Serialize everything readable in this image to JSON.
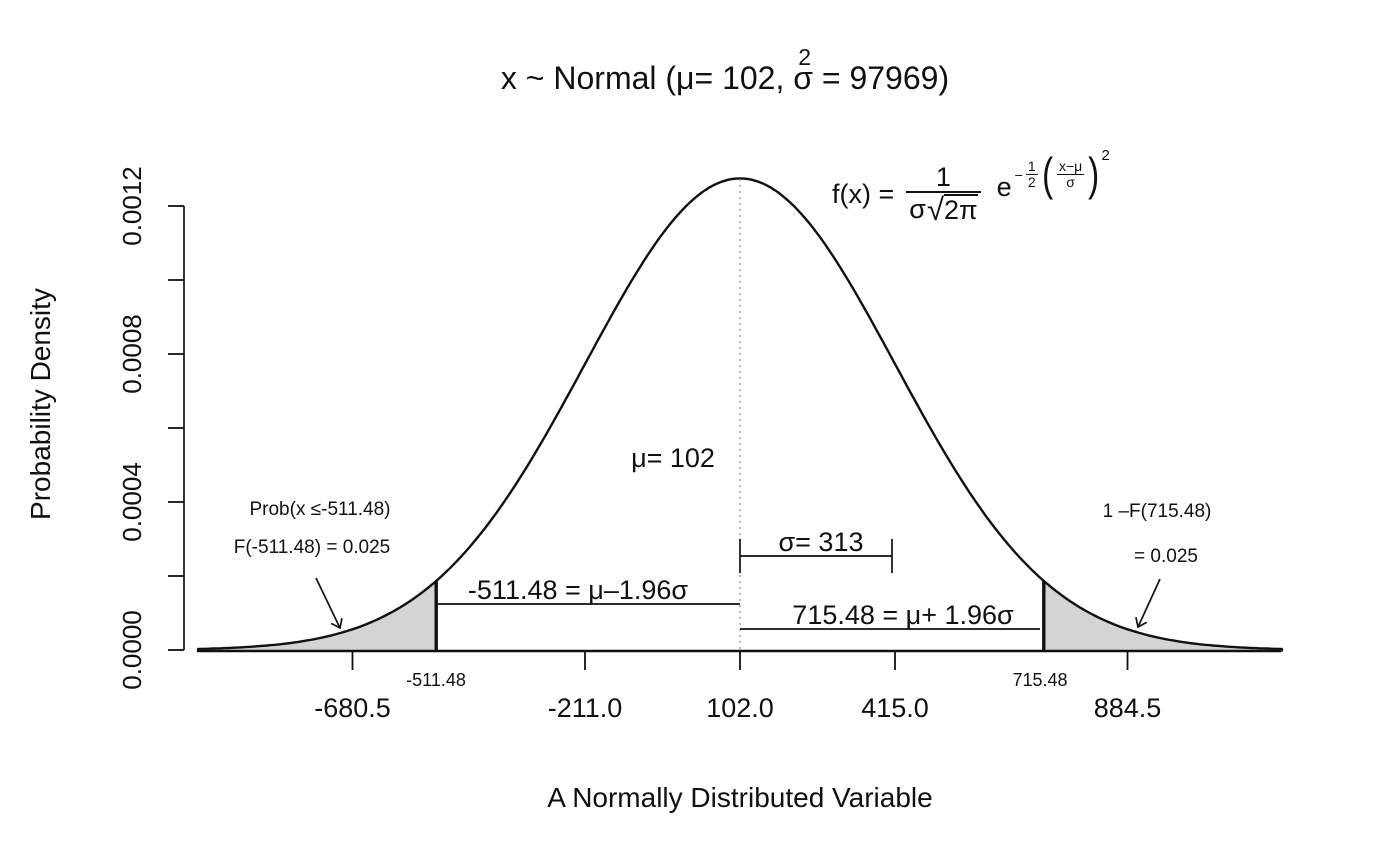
{
  "title": {
    "prefix": "x ~ Normal (μ= 102, ",
    "sigma": "σ",
    "sup": "2",
    "suffix": " = 97969)",
    "full": "x ~ Normal (μ= 102, σ² = 97969)"
  },
  "formula": {
    "lhs": "f(x) =",
    "num": "1",
    "den_sigma": "σ",
    "sqrt_sign": "√",
    "radicand": "2π",
    "e": "e",
    "exp_minus": "−",
    "exp_frac_num": "1",
    "exp_frac_den": "2",
    "paren_open": "(",
    "inner_num": "x−μ",
    "inner_den": "σ",
    "paren_close": ")",
    "exp_power": "2"
  },
  "annotations": {
    "left_tail_line1": "Prob(x ≤-511.48)",
    "left_tail_line2": "F(-511.48) = 0.025",
    "right_tail_line1": "1 –F(715.48)",
    "right_tail_line2": "= 0.025",
    "mu_label": "μ= 102",
    "sigma_label": "σ= 313",
    "lower_eq": "-511.48 = μ–1.96σ",
    "upper_eq": "715.48 = μ+ 1.96σ",
    "lower_crit_tick": "-511.48",
    "upper_crit_tick": "715.48"
  },
  "chart_data": {
    "type": "line",
    "title": "x ~ Normal (μ= 102, σ² = 97969)",
    "xlabel": "A Normally Distributed Variable",
    "ylabel": "Probability Density",
    "distribution": {
      "family": "normal",
      "mean": 102,
      "sd": 313,
      "variance": 97969
    },
    "x_range": [
      -993.5,
      1197.5
    ],
    "ylim": [
      0,
      0.0012
    ],
    "peak_density": 0.001274,
    "x_ticks": [
      {
        "value": -680.5,
        "label": "-680.5"
      },
      {
        "value": -211.0,
        "label": "-211.0"
      },
      {
        "value": 102.0,
        "label": "102.0"
      },
      {
        "value": 415.0,
        "label": "415.0"
      },
      {
        "value": 884.5,
        "label": "884.5"
      }
    ],
    "y_ticks": [
      {
        "value": 0.0,
        "label": "0.0000"
      },
      {
        "value": 0.0002,
        "label": ""
      },
      {
        "value": 0.0004,
        "label": "0.0004"
      },
      {
        "value": 0.0006,
        "label": ""
      },
      {
        "value": 0.0008,
        "label": "0.0008"
      },
      {
        "value": 0.001,
        "label": ""
      },
      {
        "value": 0.0012,
        "label": "0.0012"
      }
    ],
    "critical_values": {
      "lower": -511.48,
      "upper": 715.48,
      "z": 1.96
    },
    "shaded_regions": [
      {
        "from": -993.5,
        "to": -511.48,
        "area": 0.025,
        "color": "#d4d4d4"
      },
      {
        "from": 715.48,
        "to": 1197.5,
        "area": 0.025,
        "color": "#d4d4d4"
      }
    ],
    "tail_probability_each": 0.025,
    "colors": {
      "curve": "#111111",
      "shade": "#d4d4d4",
      "mean_line": "#999999"
    }
  }
}
